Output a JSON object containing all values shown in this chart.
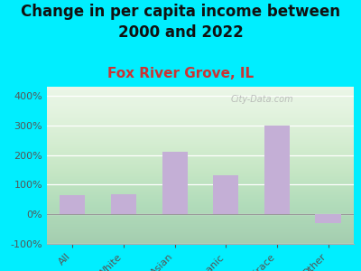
{
  "title": "Change in per capita income between\n2000 and 2022",
  "subtitle": "Fox River Grove, IL",
  "categories": [
    "All",
    "White",
    "Asian",
    "Hispanic",
    "Multirace",
    "Other"
  ],
  "values": [
    65,
    68,
    210,
    130,
    300,
    -30
  ],
  "bar_color": "#c4afd6",
  "title_fontsize": 12,
  "subtitle_fontsize": 11,
  "subtitle_color": "#cc3333",
  "title_color": "#111111",
  "background_outer": "#00eeff",
  "ylim": [
    -100,
    430
  ],
  "yticks": [
    -100,
    0,
    100,
    200,
    300,
    400
  ],
  "tick_color": "#555555",
  "watermark": "City-Data.com",
  "watermark_color": "#aaaaaa"
}
